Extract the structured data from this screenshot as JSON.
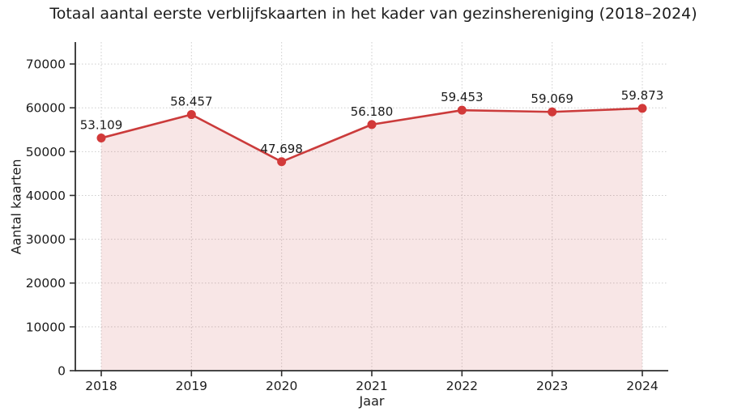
{
  "chart_data": {
    "type": "line",
    "title": "Totaal aantal eerste verblijfskaarten in het kader van gezinshereniging (2018–2024)",
    "xlabel": "Jaar",
    "ylabel": "Aantal kaarten",
    "categories": [
      "2018",
      "2019",
      "2020",
      "2021",
      "2022",
      "2023",
      "2024"
    ],
    "values": [
      53109,
      58457,
      47698,
      56180,
      59453,
      59069,
      59873
    ],
    "point_labels": [
      "53.109",
      "58.457",
      "47.698",
      "56.180",
      "59.453",
      "59.069",
      "59.873"
    ],
    "ylim": [
      0,
      75000
    ],
    "yticks": [
      0,
      10000,
      20000,
      30000,
      40000,
      50000,
      60000,
      70000
    ],
    "ytick_labels": [
      "0",
      "10000",
      "20000",
      "30000",
      "40000",
      "50000",
      "60000",
      "70000"
    ],
    "grid": true,
    "grid_style": "dotted",
    "legend": false,
    "area_fill": true,
    "colors": {
      "line": "#cb3b3b",
      "marker": "#d23939",
      "area": "rgba(204,59,59,0.13)",
      "grid": "#cdcdcd",
      "spine": "#2e2e2e",
      "text": "#1c1c1c"
    }
  }
}
